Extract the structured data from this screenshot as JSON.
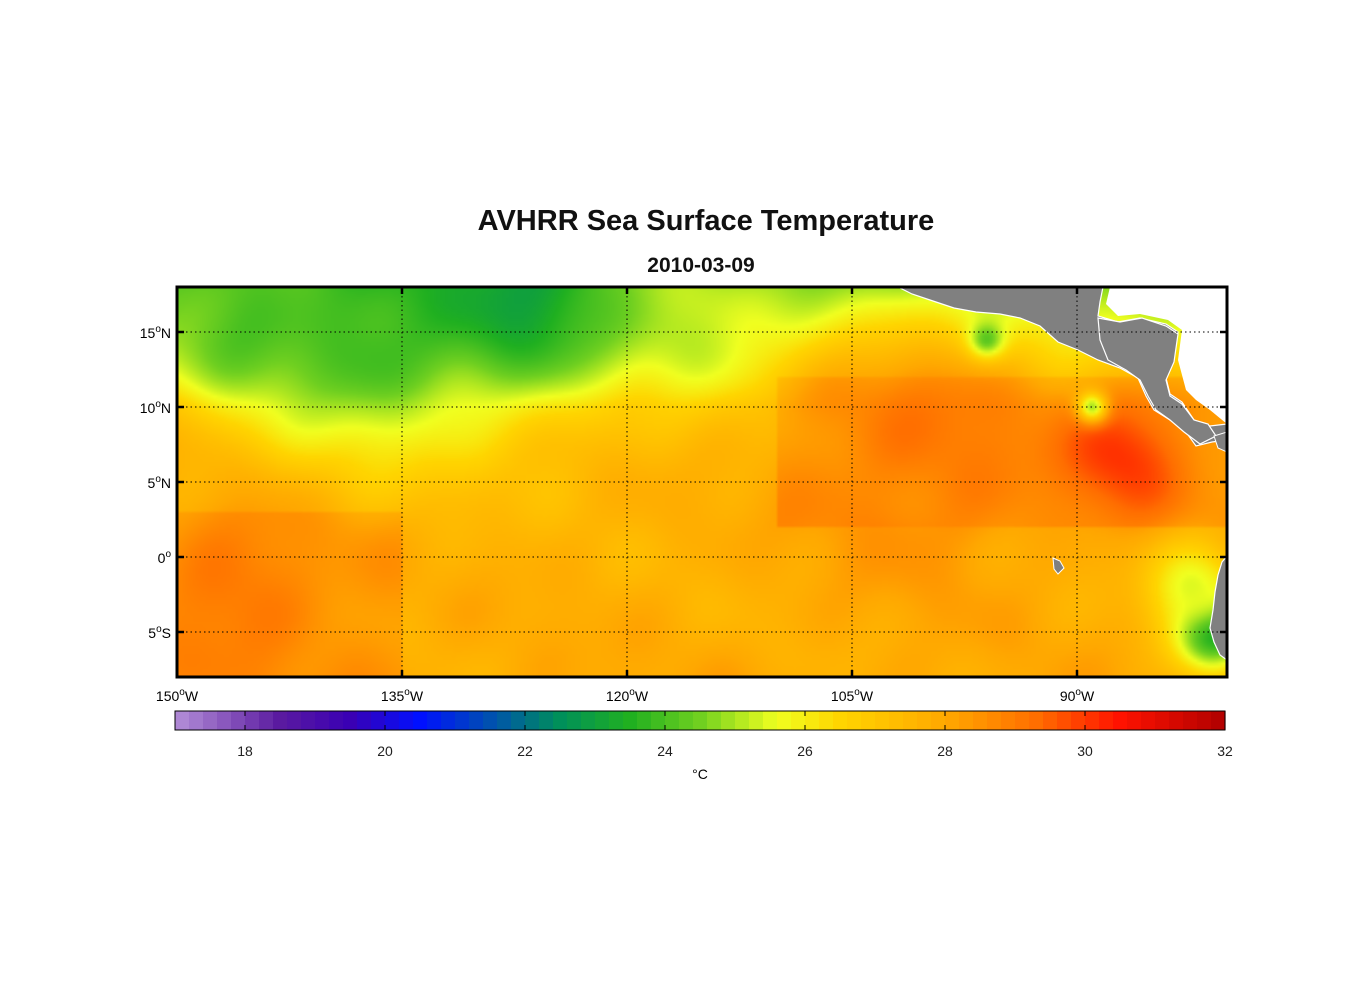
{
  "chart_data": {
    "type": "heatmap",
    "title": "AVHRR Sea Surface Temperature",
    "subtitle": "2010-03-09",
    "lon_range": [
      -150,
      -80
    ],
    "lat_range": [
      -8,
      18
    ],
    "x_ticks": [
      {
        "value": -150,
        "deg": "150",
        "hemi": "W"
      },
      {
        "value": -135,
        "deg": "135",
        "hemi": "W"
      },
      {
        "value": -120,
        "deg": "120",
        "hemi": "W"
      },
      {
        "value": -105,
        "deg": "105",
        "hemi": "W"
      },
      {
        "value": -90,
        "deg": "90",
        "hemi": "W"
      }
    ],
    "y_ticks": [
      {
        "value": 15,
        "deg": "15",
        "hemi": "N"
      },
      {
        "value": 10,
        "deg": "10",
        "hemi": "N"
      },
      {
        "value": 5,
        "deg": "5",
        "hemi": "N"
      },
      {
        "value": 0,
        "deg": "0",
        "hemi": ""
      },
      {
        "value": -5,
        "deg": "5",
        "hemi": "S"
      }
    ],
    "grid": true,
    "colorbar": {
      "range": [
        17,
        32
      ],
      "ticks": [
        18,
        20,
        22,
        24,
        26,
        28,
        30,
        32
      ],
      "label": "°C",
      "stops": [
        {
          "value": 17,
          "color": "#b48fd8"
        },
        {
          "value": 18.5,
          "color": "#5a1aa0"
        },
        {
          "value": 19.5,
          "color": "#3a00b4"
        },
        {
          "value": 20.5,
          "color": "#0010ff"
        },
        {
          "value": 21.5,
          "color": "#0050b0"
        },
        {
          "value": 22.5,
          "color": "#00905a"
        },
        {
          "value": 23.5,
          "color": "#20b020"
        },
        {
          "value": 24.5,
          "color": "#70d020"
        },
        {
          "value": 25.6,
          "color": "#f0ff20"
        },
        {
          "value": 26.5,
          "color": "#ffd500"
        },
        {
          "value": 28,
          "color": "#ffa800"
        },
        {
          "value": 29.3,
          "color": "#ff6e00"
        },
        {
          "value": 30.5,
          "color": "#ff1200"
        },
        {
          "value": 32,
          "color": "#b00000"
        }
      ]
    },
    "land_color": "#808080",
    "sst_field": {
      "base_west_south": 28.6,
      "base_equator": 27.5,
      "features": [
        {
          "lon": -127,
          "lat": 17.5,
          "sst": 23.0,
          "radius": 7
        },
        {
          "lon": -137,
          "lat": 15.5,
          "sst": 23.6,
          "radius": 8
        },
        {
          "lon": -145,
          "lat": 16.5,
          "sst": 24.0,
          "radius": 6
        },
        {
          "lon": -115,
          "lat": 17,
          "sst": 25.0,
          "radius": 6
        },
        {
          "lon": -87,
          "lat": 7,
          "sst": 30.2,
          "radius": 4
        },
        {
          "lon": -100,
          "lat": 7,
          "sst": 29.0,
          "radius": 8
        },
        {
          "lon": -146,
          "lat": -2,
          "sst": 29.2,
          "radius": 5
        },
        {
          "lon": -81,
          "lat": -5,
          "sst": 23.0,
          "radius": 2.5
        },
        {
          "lon": -82,
          "lat": -2,
          "sst": 25.5,
          "radius": 3
        },
        {
          "lon": -96,
          "lat": 14.5,
          "sst": 24.5,
          "radius": 1.2
        },
        {
          "lon": -89,
          "lat": 10,
          "sst": 25.0,
          "radius": 1
        }
      ]
    }
  }
}
